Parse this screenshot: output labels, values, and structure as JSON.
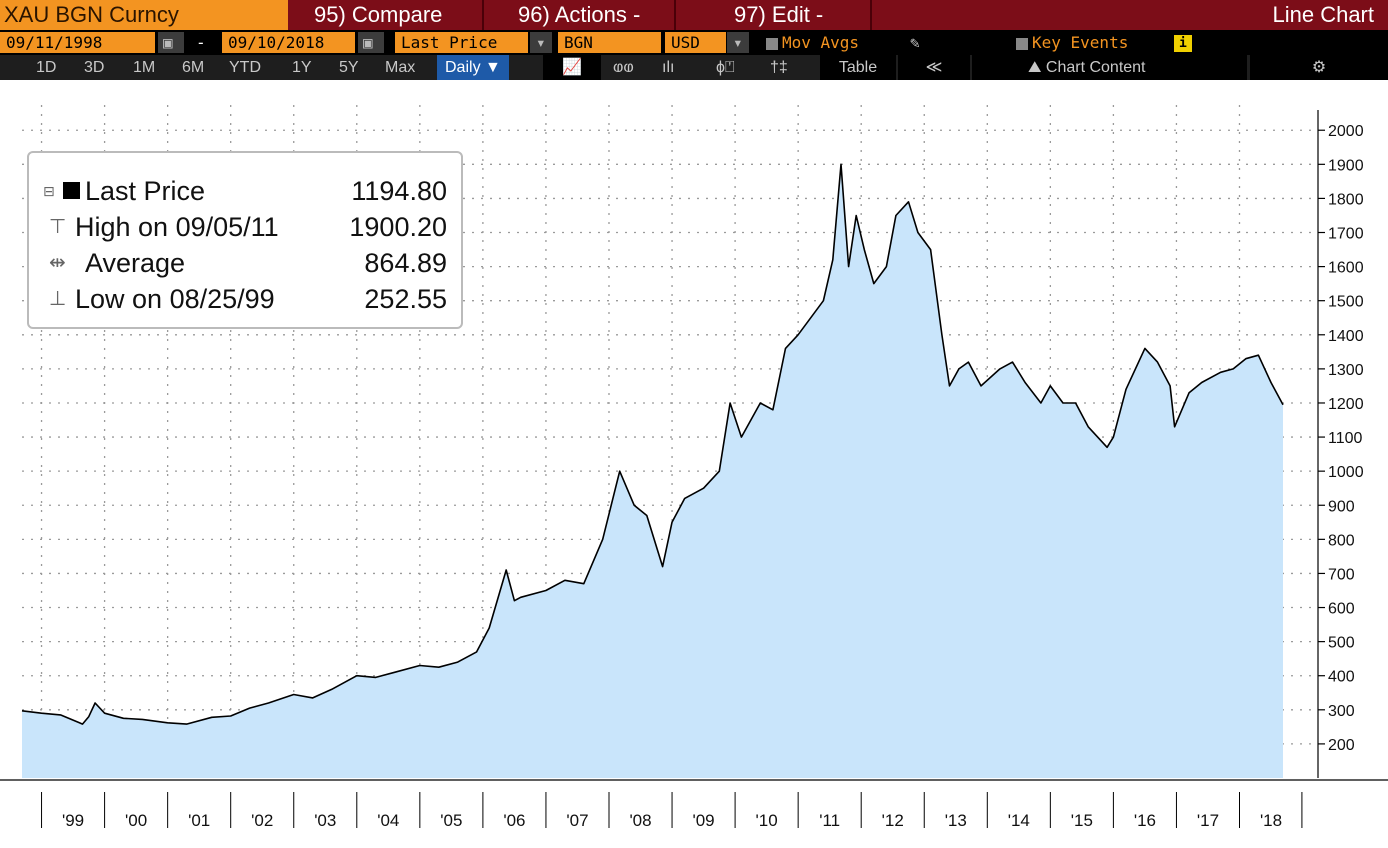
{
  "header": {
    "ticker": "XAU BGN Curncy",
    "compare": "95) Compare",
    "actions": "96) Actions -",
    "edit": "97) Edit -",
    "chart_type": "Line Chart"
  },
  "controls": {
    "start_date": "09/11/1998",
    "dash": "-",
    "end_date": "09/10/2018",
    "field": "Last Price",
    "source": "BGN",
    "currency": "USD",
    "mov_avgs": "Mov Avgs",
    "key_events": "Key Events",
    "info": "i"
  },
  "toolbar": {
    "ranges": [
      "1D",
      "3D",
      "1M",
      "6M",
      "YTD",
      "1Y",
      "5Y",
      "Max"
    ],
    "period": "Daily ▼",
    "table": "Table",
    "collapse": "≪",
    "chart_content": "Chart Content",
    "gear": "⚙"
  },
  "legend": {
    "last_label": "Last Price",
    "last_value": "1194.80",
    "high_label": "High on 09/05/11",
    "high_value": "1900.20",
    "avg_label": "Average",
    "avg_value": "864.89",
    "low_label": "Low on 08/25/99",
    "low_value": "252.55"
  },
  "colors": {
    "fill": "#c9e5fb",
    "line": "#000000",
    "grid": "#9a9a9a"
  },
  "chart_data": {
    "type": "area",
    "title": "",
    "xlabel": "",
    "ylabel": "",
    "ylim": [
      100,
      2030
    ],
    "y_ticks": [
      200,
      300,
      400,
      500,
      600,
      700,
      800,
      900,
      1000,
      1100,
      1200,
      1300,
      1400,
      1500,
      1600,
      1700,
      1800,
      1900,
      2000
    ],
    "x_labels": [
      "'99",
      "'00",
      "'01",
      "'02",
      "'03",
      "'04",
      "'05",
      "'06",
      "'07",
      "'08",
      "'09",
      "'10",
      "'11",
      "'12",
      "'13",
      "'14",
      "'15",
      "'16",
      "'17",
      "'18"
    ],
    "xlim": [
      1998.69,
      2018.69
    ],
    "grid": true,
    "series": [
      {
        "name": "Last Price",
        "x": [
          1998.69,
          1999.0,
          1999.3,
          1999.6,
          1999.65,
          1999.75,
          1999.85,
          2000.0,
          2000.3,
          2000.6,
          2001.0,
          2001.3,
          2001.7,
          2002.0,
          2002.3,
          2002.6,
          2003.0,
          2003.3,
          2003.6,
          2004.0,
          2004.3,
          2004.6,
          2005.0,
          2005.3,
          2005.6,
          2005.9,
          2006.1,
          2006.37,
          2006.5,
          2006.6,
          2007.0,
          2007.3,
          2007.6,
          2007.9,
          2008.17,
          2008.4,
          2008.6,
          2008.85,
          2009.0,
          2009.2,
          2009.5,
          2009.75,
          2009.92,
          2010.1,
          2010.4,
          2010.6,
          2010.8,
          2011.0,
          2011.2,
          2011.4,
          2011.55,
          2011.68,
          2011.8,
          2011.92,
          2012.05,
          2012.2,
          2012.4,
          2012.55,
          2012.75,
          2012.9,
          2013.1,
          2013.28,
          2013.4,
          2013.55,
          2013.7,
          2013.9,
          2014.2,
          2014.4,
          2014.6,
          2014.85,
          2015.0,
          2015.2,
          2015.4,
          2015.6,
          2015.9,
          2016.0,
          2016.2,
          2016.5,
          2016.7,
          2016.9,
          2016.97,
          2017.2,
          2017.4,
          2017.7,
          2017.9,
          2018.1,
          2018.3,
          2018.5,
          2018.69
        ],
        "y": [
          297,
          290,
          285,
          262,
          258,
          280,
          320,
          290,
          275,
          272,
          262,
          258,
          278,
          282,
          305,
          320,
          345,
          335,
          360,
          400,
          395,
          410,
          430,
          425,
          440,
          470,
          540,
          710,
          620,
          630,
          650,
          680,
          670,
          800,
          1000,
          900,
          870,
          720,
          850,
          920,
          950,
          1000,
          1200,
          1100,
          1200,
          1180,
          1360,
          1400,
          1450,
          1500,
          1620,
          1900,
          1600,
          1750,
          1650,
          1550,
          1600,
          1750,
          1790,
          1700,
          1650,
          1400,
          1250,
          1300,
          1320,
          1250,
          1300,
          1320,
          1260,
          1200,
          1250,
          1200,
          1200,
          1130,
          1070,
          1100,
          1240,
          1360,
          1320,
          1250,
          1130,
          1230,
          1260,
          1290,
          1300,
          1330,
          1340,
          1260,
          1195
        ]
      }
    ]
  }
}
